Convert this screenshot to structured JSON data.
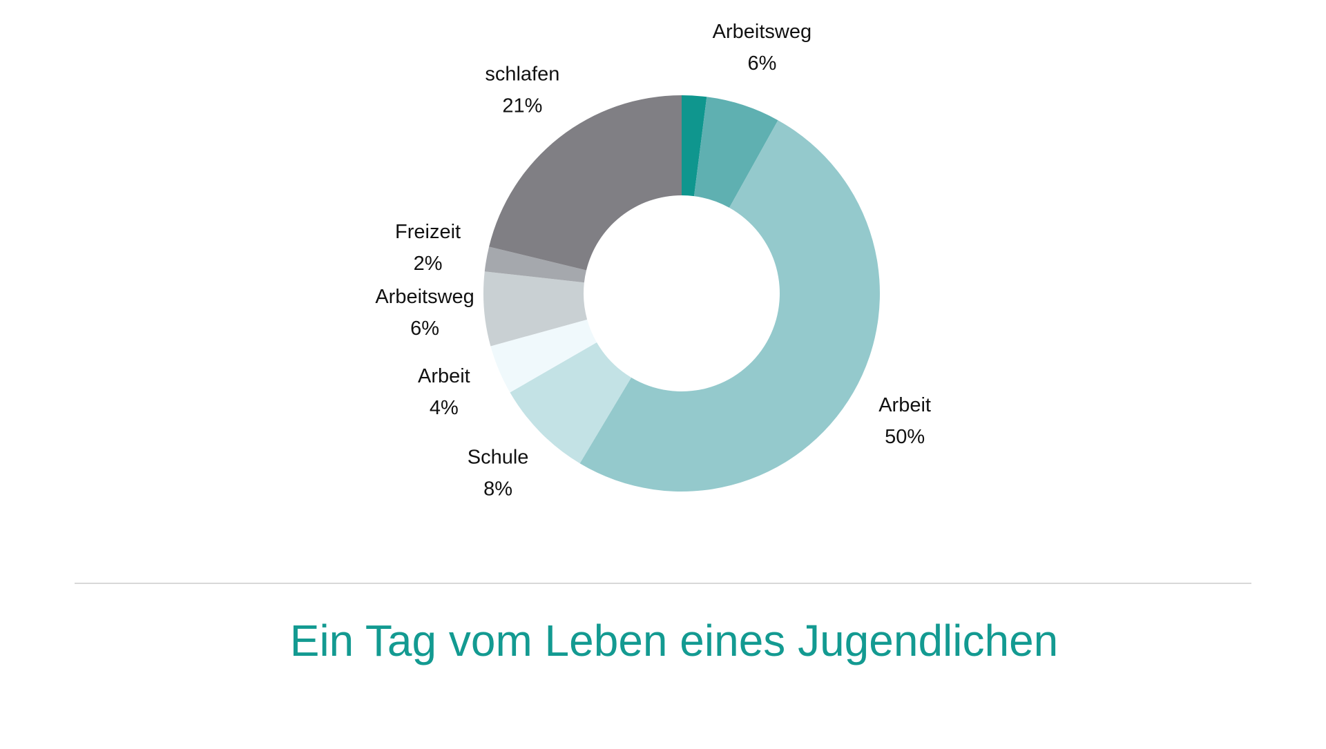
{
  "chart_data": {
    "type": "pie",
    "title": "Ein Tag vom Leben eines Jugendlichen",
    "categories": [
      null,
      "Arbeitsweg",
      "Arbeit",
      "Schule",
      "Arbeit",
      "Arbeitsweg",
      "Freizeit",
      "schlafen"
    ],
    "values": [
      2,
      6,
      50,
      8,
      4,
      6,
      2,
      21
    ],
    "value_labels": [
      null,
      "6%",
      "50%",
      "8%",
      "4%",
      "6%",
      "2%",
      "21%"
    ],
    "colors": [
      "#0f968e",
      "#5fb0b1",
      "#94c9cc",
      "#c3e2e5",
      "#f0f9fc",
      "#c9d0d3",
      "#a5a8ad",
      "#807f84"
    ]
  }
}
